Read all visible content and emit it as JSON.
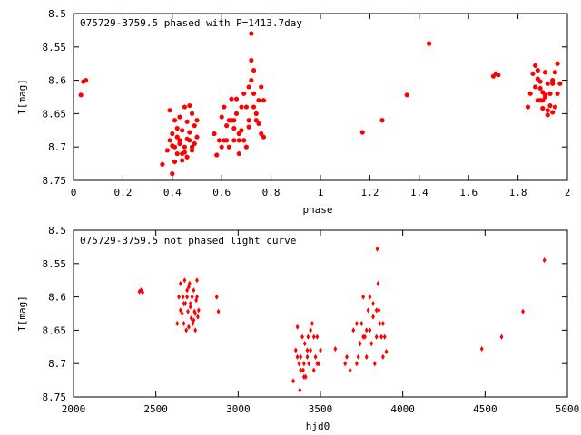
{
  "colors": {
    "points": "#ff0000",
    "axes": "#000000",
    "background": "#ffffff"
  },
  "chart_data": [
    {
      "type": "scatter",
      "title": "075729-3759.5 phased with P=1413.7day",
      "xlabel": "phase",
      "ylabel": "I[mag]",
      "xlim": [
        0,
        2
      ],
      "ylim": [
        8.75,
        8.5
      ],
      "y_inverted": true,
      "xticks": [
        "0",
        "0.2",
        "0.4",
        "0.6",
        "0.8",
        "1",
        "1.2",
        "1.4",
        "1.6",
        "1.8",
        "2"
      ],
      "yticks": [
        "8.5",
        "8.55",
        "8.6",
        "8.65",
        "8.7",
        "8.75"
      ],
      "grid": false,
      "series": [
        {
          "marker": "filled-circle",
          "x": [
            0.03,
            0.04,
            0.05,
            0.36,
            0.38,
            0.39,
            0.39,
            0.4,
            0.4,
            0.41,
            0.41,
            0.42,
            0.42,
            0.43,
            0.43,
            0.44,
            0.44,
            0.45,
            0.45,
            0.46,
            0.46,
            0.47,
            0.47,
            0.48,
            0.48,
            0.49,
            0.49,
            0.5,
            0.5,
            0.4,
            0.42,
            0.44,
            0.46,
            0.48,
            0.41,
            0.43,
            0.45,
            0.47,
            0.57,
            0.58,
            0.59,
            0.6,
            0.6,
            0.61,
            0.62,
            0.62,
            0.63,
            0.64,
            0.64,
            0.65,
            0.65,
            0.66,
            0.66,
            0.67,
            0.67,
            0.68,
            0.68,
            0.69,
            0.69,
            0.7,
            0.7,
            0.71,
            0.71,
            0.72,
            0.72,
            0.72,
            0.73,
            0.73,
            0.73,
            0.74,
            0.74,
            0.75,
            0.75,
            0.76,
            0.76,
            0.77,
            0.77,
            0.71,
            0.69,
            0.67,
            0.65,
            0.63,
            0.61,
            1.17,
            1.25,
            1.35,
            1.44,
            1.7,
            1.71,
            1.72,
            1.84,
            1.85,
            1.86,
            1.87,
            1.87,
            1.88,
            1.88,
            1.89,
            1.89,
            1.9,
            1.9,
            1.91,
            1.91,
            1.92,
            1.92,
            1.93,
            1.93,
            1.94,
            1.94,
            1.95,
            1.95,
            1.96,
            1.96,
            1.97,
            1.89,
            1.91,
            1.93,
            1.88,
            1.9,
            1.92,
            1.94
          ],
          "y": [
            8.622,
            8.602,
            8.6,
            8.726,
            8.705,
            8.645,
            8.69,
            8.74,
            8.68,
            8.7,
            8.66,
            8.672,
            8.71,
            8.655,
            8.695,
            8.72,
            8.675,
            8.64,
            8.7,
            8.662,
            8.715,
            8.638,
            8.69,
            8.65,
            8.705,
            8.668,
            8.695,
            8.66,
            8.685,
            8.698,
            8.685,
            8.71,
            8.688,
            8.7,
            8.722,
            8.69,
            8.708,
            8.678,
            8.68,
            8.712,
            8.69,
            8.655,
            8.7,
            8.64,
            8.668,
            8.69,
            8.7,
            8.66,
            8.628,
            8.672,
            8.69,
            8.65,
            8.628,
            8.68,
            8.71,
            8.64,
            8.675,
            8.62,
            8.69,
            8.64,
            8.7,
            8.61,
            8.67,
            8.53,
            8.57,
            8.6,
            8.585,
            8.62,
            8.64,
            8.65,
            8.66,
            8.665,
            8.63,
            8.68,
            8.61,
            8.685,
            8.63,
            8.66,
            8.69,
            8.69,
            8.66,
            8.66,
            8.69,
            8.678,
            8.66,
            8.622,
            8.545,
            8.594,
            8.59,
            8.592,
            8.64,
            8.62,
            8.59,
            8.578,
            8.61,
            8.598,
            8.63,
            8.602,
            8.63,
            8.618,
            8.642,
            8.588,
            8.625,
            8.605,
            8.652,
            8.62,
            8.638,
            8.6,
            8.648,
            8.64,
            8.588,
            8.62,
            8.575,
            8.605,
            8.612,
            8.622,
            8.62,
            8.585,
            8.63,
            8.645,
            8.605
          ]
        }
      ]
    },
    {
      "type": "scatter",
      "title": "075729-3759.5 not phased light curve",
      "xlabel": "hjd0",
      "ylabel": "I[mag]",
      "xlim": [
        2000,
        5000
      ],
      "ylim": [
        8.75,
        8.5
      ],
      "y_inverted": true,
      "xticks": [
        "2000",
        "2500",
        "3000",
        "3500",
        "4000",
        "4500",
        "5000"
      ],
      "yticks": [
        "8.5",
        "8.55",
        "8.6",
        "8.65",
        "8.7",
        "8.75"
      ],
      "grid": false,
      "series": [
        {
          "marker": "diamond",
          "x": [
            2400,
            2410,
            2420,
            2630,
            2640,
            2650,
            2650,
            2660,
            2665,
            2670,
            2675,
            2680,
            2685,
            2690,
            2695,
            2700,
            2705,
            2710,
            2715,
            2720,
            2725,
            2730,
            2735,
            2740,
            2745,
            2750,
            2755,
            2760,
            2690,
            2710,
            2730,
            2750,
            2670,
            2700,
            2740,
            2870,
            2880,
            3335,
            3350,
            3360,
            3370,
            3375,
            3380,
            3390,
            3395,
            3400,
            3405,
            3410,
            3420,
            3425,
            3430,
            3440,
            3450,
            3460,
            3470,
            3480,
            3490,
            3500,
            3360,
            3400,
            3440,
            3480,
            3380,
            3420,
            3460,
            3590,
            3650,
            3660,
            3680,
            3700,
            3720,
            3730,
            3740,
            3750,
            3760,
            3770,
            3780,
            3790,
            3800,
            3810,
            3820,
            3830,
            3840,
            3845,
            3850,
            3855,
            3860,
            3870,
            3880,
            3890,
            3900,
            3720,
            3760,
            3800,
            3840,
            3880,
            3740,
            3780,
            3820,
            4480,
            4600,
            4730,
            4860
          ],
          "y": [
            8.592,
            8.59,
            8.593,
            8.64,
            8.6,
            8.62,
            8.58,
            8.625,
            8.6,
            8.64,
            8.575,
            8.61,
            8.65,
            8.59,
            8.622,
            8.645,
            8.58,
            8.61,
            8.632,
            8.6,
            8.64,
            8.59,
            8.622,
            8.65,
            8.605,
            8.575,
            8.63,
            8.62,
            8.6,
            8.615,
            8.635,
            8.6,
            8.61,
            8.585,
            8.625,
            8.6,
            8.622,
            8.726,
            8.68,
            8.645,
            8.7,
            8.74,
            8.69,
            8.66,
            8.71,
            8.7,
            8.67,
            8.72,
            8.69,
            8.66,
            8.7,
            8.68,
            8.64,
            8.71,
            8.69,
            8.66,
            8.7,
            8.68,
            8.69,
            8.72,
            8.65,
            8.7,
            8.71,
            8.68,
            8.66,
            8.678,
            8.7,
            8.69,
            8.71,
            8.65,
            8.64,
            8.69,
            8.67,
            8.64,
            8.6,
            8.66,
            8.69,
            8.62,
            8.65,
            8.67,
            8.61,
            8.7,
            8.66,
            8.528,
            8.58,
            8.62,
            8.64,
            8.66,
            8.69,
            8.66,
            8.682,
            8.7,
            8.66,
            8.6,
            8.62,
            8.64,
            8.67,
            8.65,
            8.63,
            8.678,
            8.66,
            8.622,
            8.545
          ]
        }
      ]
    }
  ]
}
